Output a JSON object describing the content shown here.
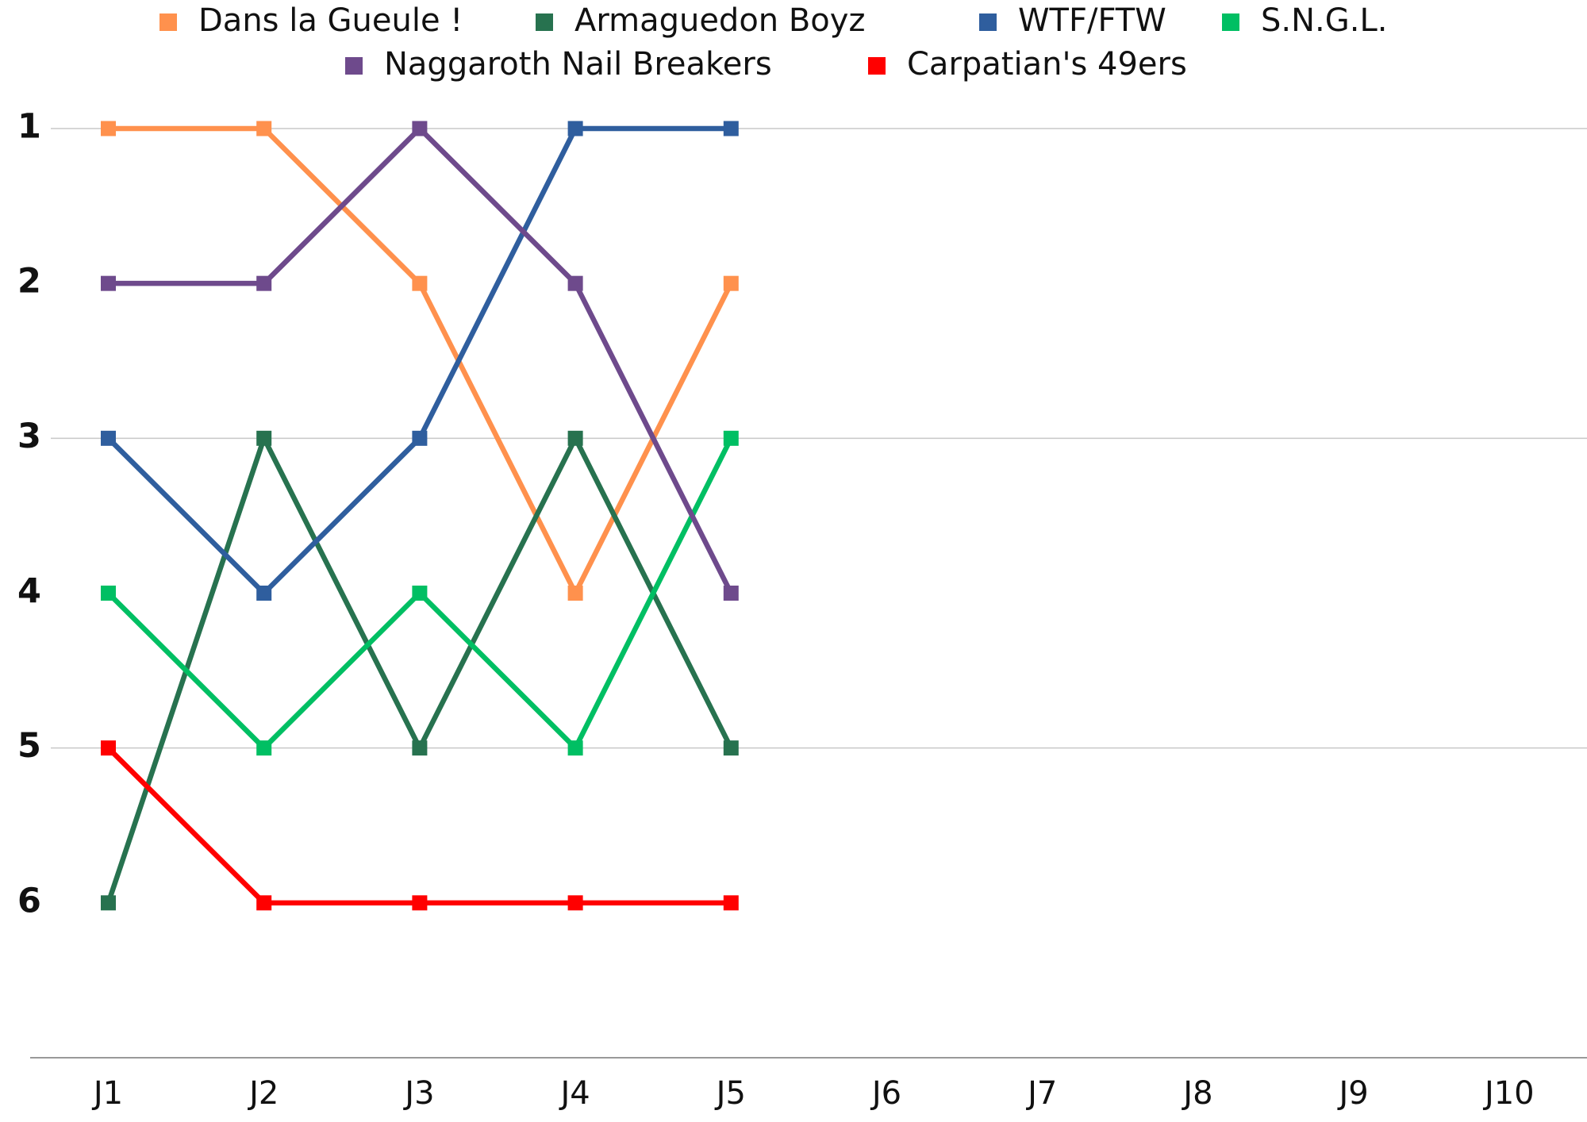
{
  "chart_data": {
    "type": "line",
    "categories": [
      "J1",
      "J2",
      "J3",
      "J4",
      "J5",
      "J6",
      "J7",
      "J8",
      "J9",
      "J10"
    ],
    "series": [
      {
        "name": "Dans la Gueule !",
        "color": "#ff914d",
        "values": [
          1,
          1,
          2,
          4,
          2,
          null,
          null,
          null,
          null,
          null
        ]
      },
      {
        "name": "Armaguedon Boyz",
        "color": "#27724f",
        "values": [
          6,
          3,
          5,
          3,
          5,
          null,
          null,
          null,
          null,
          null
        ]
      },
      {
        "name": "WTF/FTW",
        "color": "#2f5e9e",
        "values": [
          3,
          4,
          3,
          1,
          1,
          null,
          null,
          null,
          null,
          null
        ]
      },
      {
        "name": "S.N.G.L.",
        "color": "#00bf63",
        "values": [
          4,
          5,
          4,
          5,
          3,
          null,
          null,
          null,
          null,
          null
        ]
      },
      {
        "name": "Naggaroth Nail Breakers",
        "color": "#6e4a8c",
        "values": [
          2,
          2,
          1,
          2,
          4,
          null,
          null,
          null,
          null,
          null
        ]
      },
      {
        "name": "Carpatian's 49ers",
        "color": "#ff0000",
        "values": [
          5,
          6,
          6,
          6,
          6,
          null,
          null,
          null,
          null,
          null
        ]
      }
    ],
    "ylim": [
      7,
      1
    ],
    "yticks": [
      1,
      2,
      3,
      4,
      5,
      6
    ],
    "grid": true,
    "grid_ticks": [
      1,
      3,
      5
    ],
    "legend": "top"
  }
}
